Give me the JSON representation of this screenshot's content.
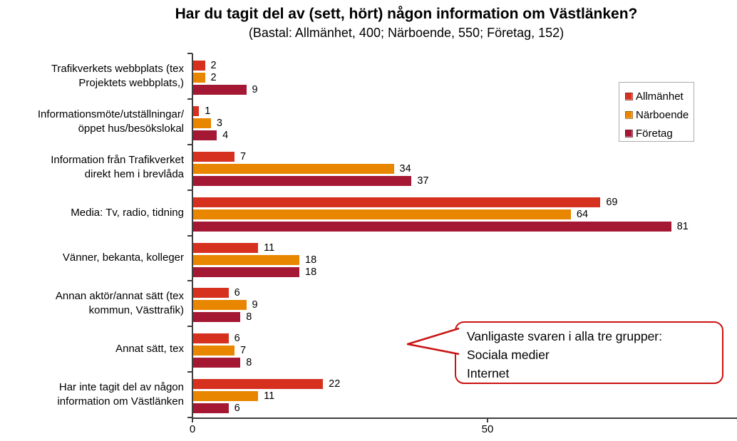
{
  "title": "Har du tagit del av (sett, hört) någon information om Västlänken?",
  "subtitle": "(Bastal: Allmänhet, 400; Närboende, 550; Företag, 152)",
  "colors": {
    "allmanhet_red": "#D6301E",
    "narboende_orange": "#E88600",
    "foretag_crimson": "#A41834",
    "axis": "#3F3F3F",
    "callout_border": "#CB1212"
  },
  "callout": {
    "text": "Vanligaste svaren i alla tre grupper:\nSociala medier\nInternet"
  },
  "x_axis": {
    "tick_labels": [
      "0",
      "50"
    ],
    "tick_values": [
      0,
      50
    ]
  },
  "chart_data": {
    "type": "bar",
    "orientation": "horizontal",
    "title": "Har du tagit del av (sett, hört) någon information om Västlänken?",
    "subtitle": "(Bastal: Allmänhet, 400; Närboende, 550; Företag, 152)",
    "categories": [
      "Trafikverkets webbplats (tex\nProjektets webbplats,)",
      "Informationsmöte/utställningar/\nöppet hus/besökslokal",
      "Information från Trafikverket\ndirekt hem i brevlåda",
      "Media: Tv, radio, tidning",
      "Vänner, bekanta, kolleger",
      "Annan aktör/annat sätt (tex\nkommun, Västtrafik)",
      "Annat sätt, tex",
      "Har inte tagit del av någon\ninformation om Västlänken"
    ],
    "series": [
      {
        "name": "Allmänhet",
        "color": "#D6301E",
        "values": [
          2,
          1,
          7,
          69,
          11,
          6,
          6,
          22
        ]
      },
      {
        "name": "Närboende",
        "color": "#E88600",
        "values": [
          2,
          3,
          34,
          64,
          18,
          9,
          7,
          11
        ]
      },
      {
        "name": "Företag",
        "color": "#A41834",
        "values": [
          9,
          4,
          37,
          81,
          18,
          8,
          8,
          6
        ]
      }
    ],
    "xlabel": "",
    "ylabel": "",
    "xlim": [
      0,
      92
    ],
    "x_ticks": [
      0,
      50
    ],
    "grid": false,
    "value_labels": true,
    "legend_position": "top-right",
    "annotation": "Vanligaste svaren i alla tre grupper:\nSociala medier\nInternet"
  }
}
